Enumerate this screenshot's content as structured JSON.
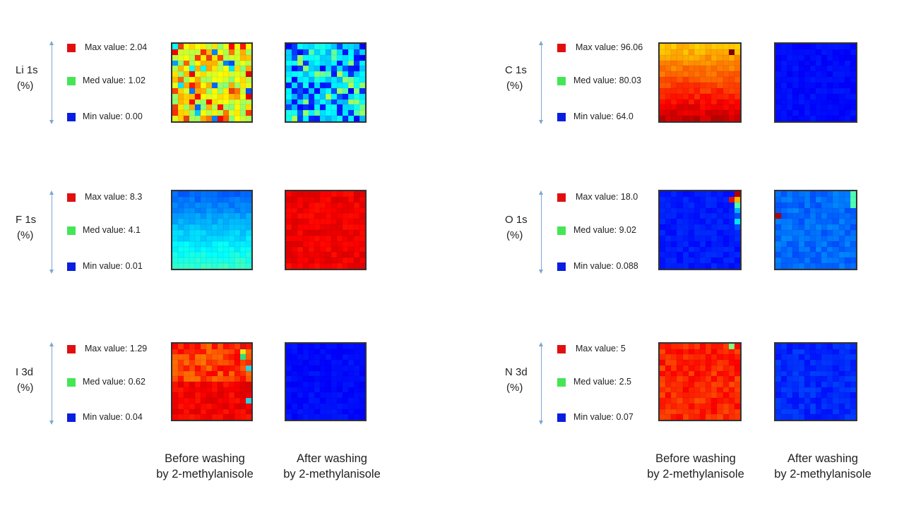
{
  "colors": {
    "max": "#e01010",
    "med": "#44e655",
    "min": "#0a1ee0",
    "arrow": "#7da7d0"
  },
  "panels": [
    {
      "element": "Li 1s",
      "unit": "(%)",
      "max": "Max value: 2.04",
      "med": "Med value: 1.02",
      "min": "Min value: 0.00"
    },
    {
      "element": "C 1s",
      "unit": "(%)",
      "max": "Max value: 96.06",
      "med": "Med value: 80.03",
      "min": "Min value: 64.0"
    },
    {
      "element": "F 1s",
      "unit": "(%)",
      "max": "Max value: 8.3",
      "med": "Med value: 4.1",
      "min": "Min value: 0.01"
    },
    {
      "element": "O 1s",
      "unit": "(%)",
      "max": "Max value: 18.0",
      "med": "Med value: 9.02",
      "min": "Min value: 0.088"
    },
    {
      "element": "I 3d",
      "unit": "(%)",
      "max": "Max value: 1.29",
      "med": "Med value: 0.62",
      "min": "Min value: 0.04"
    },
    {
      "element": "N 3d",
      "unit": "(%)",
      "max": "Max value: 5",
      "med": "Med value: 2.5",
      "min": "Min value: 0.07"
    }
  ],
  "captions": {
    "before_line1": "Before washing",
    "before_line2": "by 2-methylanisole",
    "after_line1": "After washing",
    "after_line2": "by 2-methylanisole"
  }
}
